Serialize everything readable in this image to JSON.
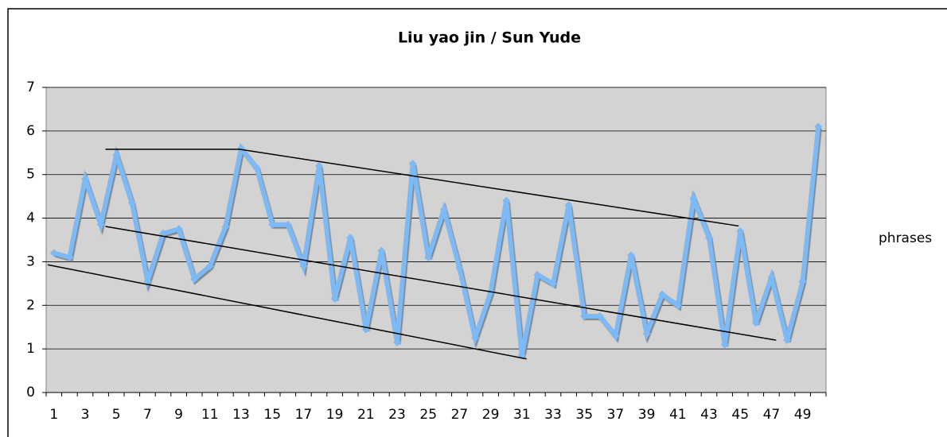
{
  "chart_data": {
    "type": "line",
    "title": "Liu yao jin / Sun Yude",
    "categories": [
      "1",
      null,
      "3",
      null,
      "5",
      null,
      "7",
      null,
      "9",
      null,
      "11",
      null,
      "13",
      null,
      "15",
      null,
      "17",
      null,
      "19",
      null,
      "21",
      null,
      "23",
      null,
      "25",
      null,
      "27",
      null,
      "29",
      null,
      "31",
      null,
      "33",
      null,
      "35",
      null,
      "37",
      null,
      "39",
      null,
      "41",
      null,
      "43",
      null,
      "45",
      null,
      "47",
      null,
      "49",
      null
    ],
    "series": [
      {
        "name": "phrases",
        "color": "#7cb9f5",
        "values": [
          3.2,
          3.1,
          4.9,
          3.85,
          5.45,
          4.35,
          2.55,
          3.65,
          3.75,
          2.6,
          2.9,
          3.8,
          5.6,
          5.15,
          3.85,
          3.85,
          2.9,
          5.2,
          2.15,
          3.55,
          1.45,
          3.25,
          1.15,
          5.25,
          3.1,
          4.2,
          2.85,
          1.25,
          2.3,
          4.4,
          0.85,
          2.7,
          2.5,
          4.3,
          1.75,
          1.75,
          1.3,
          3.15,
          1.35,
          2.25,
          2.0,
          4.45,
          3.55,
          1.1,
          3.7,
          1.6,
          2.65,
          1.2,
          2.55,
          6.1
        ]
      }
    ],
    "trend_lines": [
      {
        "x": [
          4.3,
          12.9,
          44.9
        ],
        "y": [
          5.58,
          5.58,
          3.82
        ]
      },
      {
        "x": [
          4.3,
          47.3
        ],
        "y": [
          3.81,
          1.2
        ]
      },
      {
        "x": [
          0.6,
          31.3
        ],
        "y": [
          2.93,
          0.77
        ]
      }
    ],
    "ylim": [
      0,
      7
    ],
    "yticks": [
      0,
      1,
      2,
      3,
      4,
      5,
      6,
      7
    ],
    "grid": true,
    "legend": "right"
  }
}
